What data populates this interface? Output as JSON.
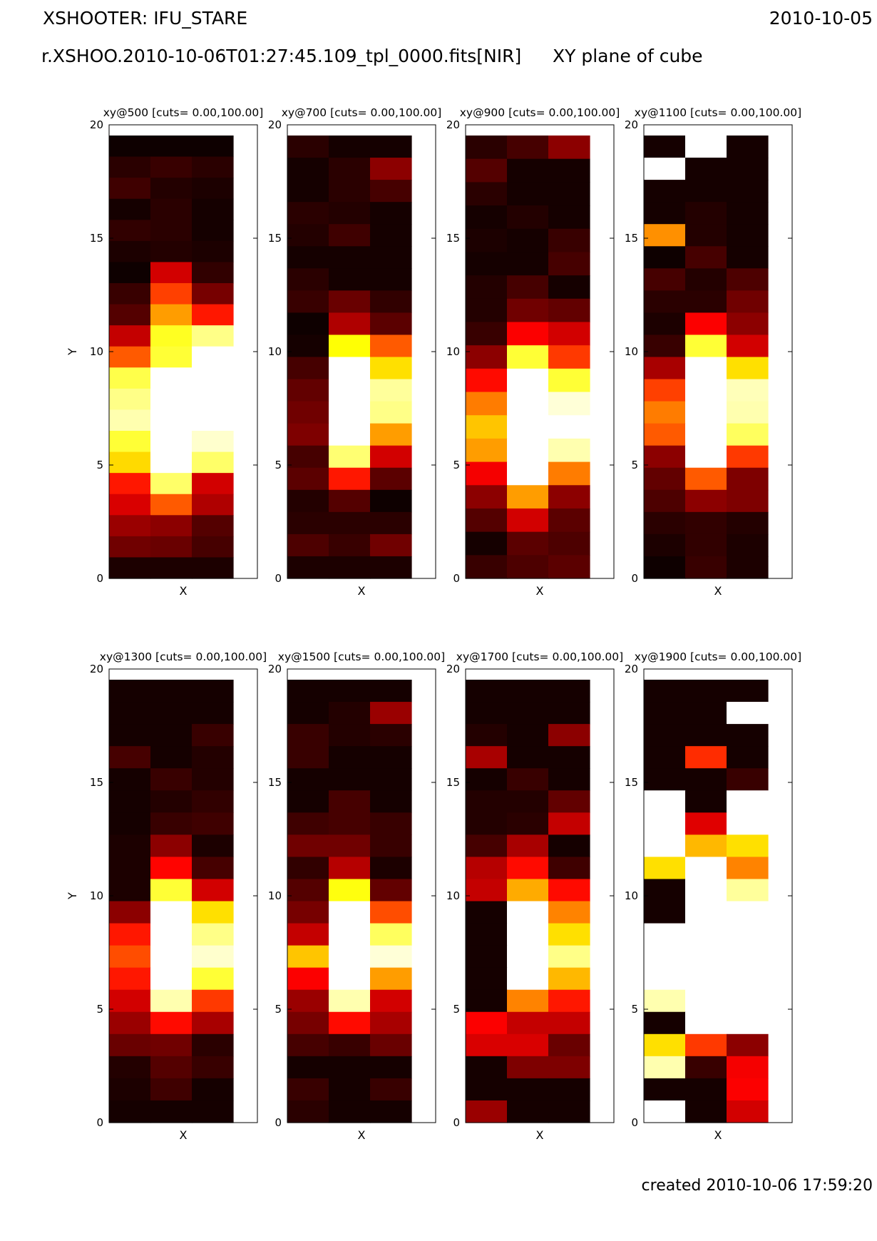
{
  "header": {
    "instrument": "XSHOOTER: IFU_STARE",
    "date": "2010-10-05",
    "filename": "r.XSHOO.2010-10-06T01:27:45.109_tpl_0000.fits[NIR]",
    "plane": "XY plane of cube"
  },
  "footer": {
    "created": "created 2010-10-06 17:59:20"
  },
  "colors": {
    "colormap": "hot",
    "background": "#ffffff",
    "axes": "#000000"
  },
  "chart_data": [
    {
      "type": "heatmap",
      "title": "xy@500 [cuts= 0.00,100.00]",
      "xlabel": "X",
      "ylabel": "Y",
      "ylim": [
        0,
        20
      ],
      "yticks": [
        "0",
        "5",
        "10",
        "15",
        "20"
      ],
      "columns": 3,
      "rows_top_to_bottom": [
        [
          2,
          2,
          2
        ],
        [
          6,
          8,
          6
        ],
        [
          9,
          5,
          4
        ],
        [
          3,
          6,
          3
        ],
        [
          7,
          6,
          3
        ],
        [
          4,
          5,
          4
        ],
        [
          2,
          30,
          7
        ],
        [
          8,
          46,
          17
        ],
        [
          12,
          60,
          40
        ],
        [
          28,
          78,
          88
        ],
        [
          50,
          80,
          100
        ],
        [
          82,
          100,
          100
        ],
        [
          88,
          100,
          100
        ],
        [
          92,
          100,
          100
        ],
        [
          80,
          100,
          95
        ],
        [
          69,
          100,
          85
        ],
        [
          40,
          85,
          30
        ],
        [
          31,
          50,
          25
        ],
        [
          22,
          20,
          12
        ],
        [
          16,
          15,
          10
        ],
        [
          4,
          4,
          4
        ]
      ]
    },
    {
      "type": "heatmap",
      "title": "xy@700 [cuts= 0.00,100.00]",
      "xlabel": "X",
      "ylabel": "",
      "ylim": [
        0,
        20
      ],
      "yticks": [
        "0",
        "5",
        "10",
        "15",
        "20"
      ],
      "columns": 3,
      "rows_top_to_bottom": [
        [
          6,
          3,
          3
        ],
        [
          3,
          6,
          20
        ],
        [
          3,
          6,
          10
        ],
        [
          6,
          5,
          3
        ],
        [
          5,
          9,
          3
        ],
        [
          3,
          3,
          3
        ],
        [
          6,
          3,
          3
        ],
        [
          8,
          15,
          7
        ],
        [
          2,
          25,
          13
        ],
        [
          3,
          75,
          50
        ],
        [
          10,
          100,
          70
        ],
        [
          14,
          100,
          90
        ],
        [
          16,
          100,
          88
        ],
        [
          18,
          100,
          60
        ],
        [
          10,
          86,
          30
        ],
        [
          13,
          40,
          13
        ],
        [
          5,
          12,
          2
        ],
        [
          6,
          6,
          6
        ],
        [
          11,
          8,
          16
        ],
        [
          4,
          4,
          4
        ]
      ]
    },
    {
      "type": "heatmap",
      "title": "xy@900 [cuts= 0.00,100.00]",
      "xlabel": "X",
      "ylabel": "",
      "ylim": [
        0,
        20
      ],
      "yticks": [
        "0",
        "5",
        "10",
        "15",
        "20"
      ],
      "columns": 3,
      "rows_top_to_bottom": [
        [
          6,
          10,
          20
        ],
        [
          12,
          3,
          3
        ],
        [
          6,
          3,
          3
        ],
        [
          3,
          5,
          3
        ],
        [
          4,
          3,
          8
        ],
        [
          3,
          3,
          10
        ],
        [
          5,
          10,
          3
        ],
        [
          5,
          16,
          14
        ],
        [
          8,
          36,
          30
        ],
        [
          20,
          80,
          45
        ],
        [
          38,
          100,
          80
        ],
        [
          55,
          100,
          96
        ],
        [
          66,
          100,
          100
        ],
        [
          60,
          100,
          92
        ],
        [
          35,
          100,
          55
        ],
        [
          20,
          60,
          20
        ],
        [
          12,
          30,
          13
        ],
        [
          3,
          13,
          11
        ],
        [
          8,
          11,
          13
        ]
      ]
    },
    {
      "type": "heatmap",
      "title": "xy@1100 [cuts= 0.00,100.00]",
      "xlabel": "X",
      "ylabel": "",
      "ylim": [
        0,
        20
      ],
      "yticks": [
        "0",
        "5",
        "10",
        "15",
        "20"
      ],
      "columns": 3,
      "rows_top_to_bottom": [
        [
          3,
          100,
          3
        ],
        [
          100,
          3,
          3
        ],
        [
          3,
          3,
          3
        ],
        [
          3,
          5,
          3
        ],
        [
          58,
          5,
          3
        ],
        [
          2,
          10,
          3
        ],
        [
          10,
          5,
          11
        ],
        [
          6,
          6,
          16
        ],
        [
          4,
          36,
          20
        ],
        [
          8,
          80,
          30
        ],
        [
          24,
          100,
          70
        ],
        [
          46,
          100,
          93
        ],
        [
          55,
          100,
          92
        ],
        [
          50,
          100,
          84
        ],
        [
          20,
          100,
          45
        ],
        [
          14,
          50,
          18
        ],
        [
          11,
          20,
          18
        ],
        [
          6,
          7,
          5
        ],
        [
          4,
          7,
          4
        ],
        [
          2,
          8,
          4
        ]
      ]
    },
    {
      "type": "heatmap",
      "title": "xy@1300 [cuts= 0.00,100.00]",
      "xlabel": "X",
      "ylabel": "Y",
      "ylim": [
        0,
        20
      ],
      "yticks": [
        "0",
        "5",
        "10",
        "15",
        "20"
      ],
      "columns": 3,
      "rows_top_to_bottom": [
        [
          3,
          3,
          3
        ],
        [
          3,
          3,
          3
        ],
        [
          3,
          3,
          8
        ],
        [
          10,
          3,
          5
        ],
        [
          3,
          8,
          5
        ],
        [
          3,
          5,
          7
        ],
        [
          3,
          8,
          9
        ],
        [
          4,
          20,
          4
        ],
        [
          4,
          37,
          10
        ],
        [
          4,
          80,
          30
        ],
        [
          20,
          100,
          70
        ],
        [
          40,
          100,
          88
        ],
        [
          48,
          100,
          95
        ],
        [
          40,
          100,
          80
        ],
        [
          30,
          92,
          45
        ],
        [
          22,
          38,
          24
        ],
        [
          15,
          16,
          6
        ],
        [
          5,
          12,
          8
        ],
        [
          4,
          9,
          3
        ],
        [
          3,
          3,
          3
        ]
      ]
    },
    {
      "type": "heatmap",
      "title": "xy@1500 [cuts= 0.00,100.00]",
      "xlabel": "X",
      "ylabel": "",
      "ylim": [
        0,
        20
      ],
      "yticks": [
        "0",
        "5",
        "10",
        "15",
        "20"
      ],
      "columns": 3,
      "rows_top_to_bottom": [
        [
          3,
          3,
          3
        ],
        [
          3,
          5,
          22
        ],
        [
          8,
          5,
          6
        ],
        [
          8,
          3,
          3
        ],
        [
          3,
          3,
          3
        ],
        [
          3,
          10,
          3
        ],
        [
          9,
          10,
          8
        ],
        [
          16,
          16,
          8
        ],
        [
          7,
          26,
          4
        ],
        [
          12,
          76,
          14
        ],
        [
          17,
          100,
          48
        ],
        [
          28,
          100,
          84
        ],
        [
          66,
          100,
          96
        ],
        [
          36,
          100,
          60
        ],
        [
          22,
          92,
          30
        ],
        [
          17,
          38,
          24
        ],
        [
          10,
          8,
          15
        ],
        [
          3,
          3,
          3
        ],
        [
          8,
          3,
          8
        ],
        [
          6,
          3,
          3
        ]
      ]
    },
    {
      "type": "heatmap",
      "title": "xy@1700 [cuts= 0.00,100.00]",
      "xlabel": "X",
      "ylabel": "",
      "ylim": [
        0,
        20
      ],
      "yticks": [
        "0",
        "5",
        "10",
        "15",
        "20"
      ],
      "columns": 3,
      "rows_top_to_bottom": [
        [
          3,
          3,
          3
        ],
        [
          3,
          3,
          3
        ],
        [
          5,
          3,
          20
        ],
        [
          24,
          3,
          3
        ],
        [
          3,
          8,
          3
        ],
        [
          5,
          5,
          14
        ],
        [
          5,
          6,
          28
        ],
        [
          10,
          24,
          3
        ],
        [
          26,
          38,
          9
        ],
        [
          28,
          62,
          38
        ],
        [
          3,
          100,
          56
        ],
        [
          3,
          100,
          70
        ],
        [
          3,
          100,
          88
        ],
        [
          3,
          100,
          64
        ],
        [
          3,
          56,
          40
        ],
        [
          36,
          28,
          28
        ],
        [
          31,
          31,
          15
        ],
        [
          3,
          18,
          18
        ],
        [
          3,
          3,
          3
        ],
        [
          22,
          3,
          3
        ]
      ]
    },
    {
      "type": "heatmap",
      "title": "xy@1900 [cuts= 0.00,100.00]",
      "xlabel": "X",
      "ylabel": "",
      "ylim": [
        0,
        20
      ],
      "yticks": [
        "0",
        "5",
        "10",
        "15",
        "20"
      ],
      "columns": 3,
      "rows_top_to_bottom": [
        [
          3,
          3,
          3
        ],
        [
          3,
          3,
          100
        ],
        [
          3,
          3,
          3
        ],
        [
          3,
          43,
          3
        ],
        [
          3,
          3,
          8
        ],
        [
          100,
          3,
          100
        ],
        [
          100,
          32,
          100
        ],
        [
          100,
          64,
          70
        ],
        [
          70,
          100,
          56
        ],
        [
          3,
          100,
          90
        ],
        [
          3,
          100,
          100
        ],
        [
          100,
          100,
          100
        ],
        [
          100,
          100,
          100
        ],
        [
          100,
          100,
          100
        ],
        [
          92,
          100,
          100
        ],
        [
          3,
          100,
          100
        ],
        [
          70,
          45,
          20
        ],
        [
          92,
          8,
          35
        ],
        [
          3,
          3,
          36
        ],
        [
          100,
          3,
          30
        ]
      ]
    }
  ]
}
